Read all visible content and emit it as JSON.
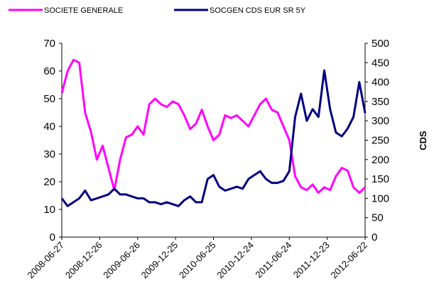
{
  "chart_data": {
    "type": "line",
    "x": [
      "2008-06-27",
      "2008-07-25",
      "2008-08-22",
      "2008-09-19",
      "2008-10-17",
      "2008-11-14",
      "2008-12-12",
      "2009-01-09",
      "2009-02-06",
      "2009-03-06",
      "2009-04-03",
      "2009-05-01",
      "2009-05-29",
      "2009-06-26",
      "2009-07-24",
      "2009-08-21",
      "2009-09-18",
      "2009-10-16",
      "2009-11-13",
      "2009-12-11",
      "2010-01-08",
      "2010-02-05",
      "2010-03-05",
      "2010-04-02",
      "2010-04-30",
      "2010-05-28",
      "2010-06-25",
      "2010-07-23",
      "2010-08-20",
      "2010-09-17",
      "2010-10-15",
      "2010-11-12",
      "2010-12-10",
      "2011-01-07",
      "2011-02-04",
      "2011-03-04",
      "2011-04-01",
      "2011-04-29",
      "2011-05-27",
      "2011-06-24",
      "2011-07-22",
      "2011-08-19",
      "2011-09-16",
      "2011-10-14",
      "2011-11-11",
      "2011-12-09",
      "2012-01-06",
      "2012-02-03",
      "2012-03-02",
      "2012-03-30",
      "2012-04-27",
      "2012-05-25",
      "2012-06-22"
    ],
    "series": [
      {
        "name": "SOCIETE GENERALE",
        "color": "#ff00ff",
        "axis": "y",
        "values": [
          52,
          60,
          64,
          63,
          45,
          38,
          28,
          33,
          25,
          17,
          28,
          36,
          37,
          40,
          37,
          48,
          50,
          48,
          47,
          49,
          48,
          44,
          39,
          41,
          46,
          40,
          35,
          37,
          44,
          43,
          44,
          42,
          40,
          44,
          48,
          50,
          46,
          45,
          40,
          35,
          22,
          18,
          17,
          19,
          16,
          18,
          17,
          22,
          25,
          24,
          18,
          16,
          18
        ]
      },
      {
        "name": "SOCGEN CDS EUR SR 5Y",
        "color": "#000080",
        "axis": "y2",
        "values": [
          100,
          80,
          90,
          100,
          120,
          95,
          100,
          105,
          110,
          125,
          110,
          110,
          105,
          100,
          100,
          90,
          90,
          85,
          90,
          85,
          80,
          95,
          105,
          90,
          90,
          150,
          160,
          130,
          120,
          125,
          130,
          125,
          150,
          160,
          170,
          150,
          140,
          140,
          145,
          170,
          310,
          370,
          300,
          330,
          310,
          430,
          330,
          270,
          260,
          280,
          310,
          400,
          320
        ]
      }
    ],
    "xlim": [
      "2008-06-27",
      "2012-06-22"
    ],
    "xticks": [
      "2008-06-27",
      "2008-12-26",
      "2009-06-26",
      "2009-12-25",
      "2010-06-25",
      "2010-12-24",
      "2011-06-24",
      "2011-12-23",
      "2012-06-22"
    ],
    "ylim": [
      0,
      70
    ],
    "yticks": [
      0,
      10,
      20,
      30,
      40,
      50,
      60,
      70
    ],
    "y2lim": [
      0,
      500
    ],
    "y2ticks": [
      0,
      50,
      100,
      150,
      200,
      250,
      300,
      350,
      400,
      450,
      500
    ],
    "y2label": "CDS"
  }
}
